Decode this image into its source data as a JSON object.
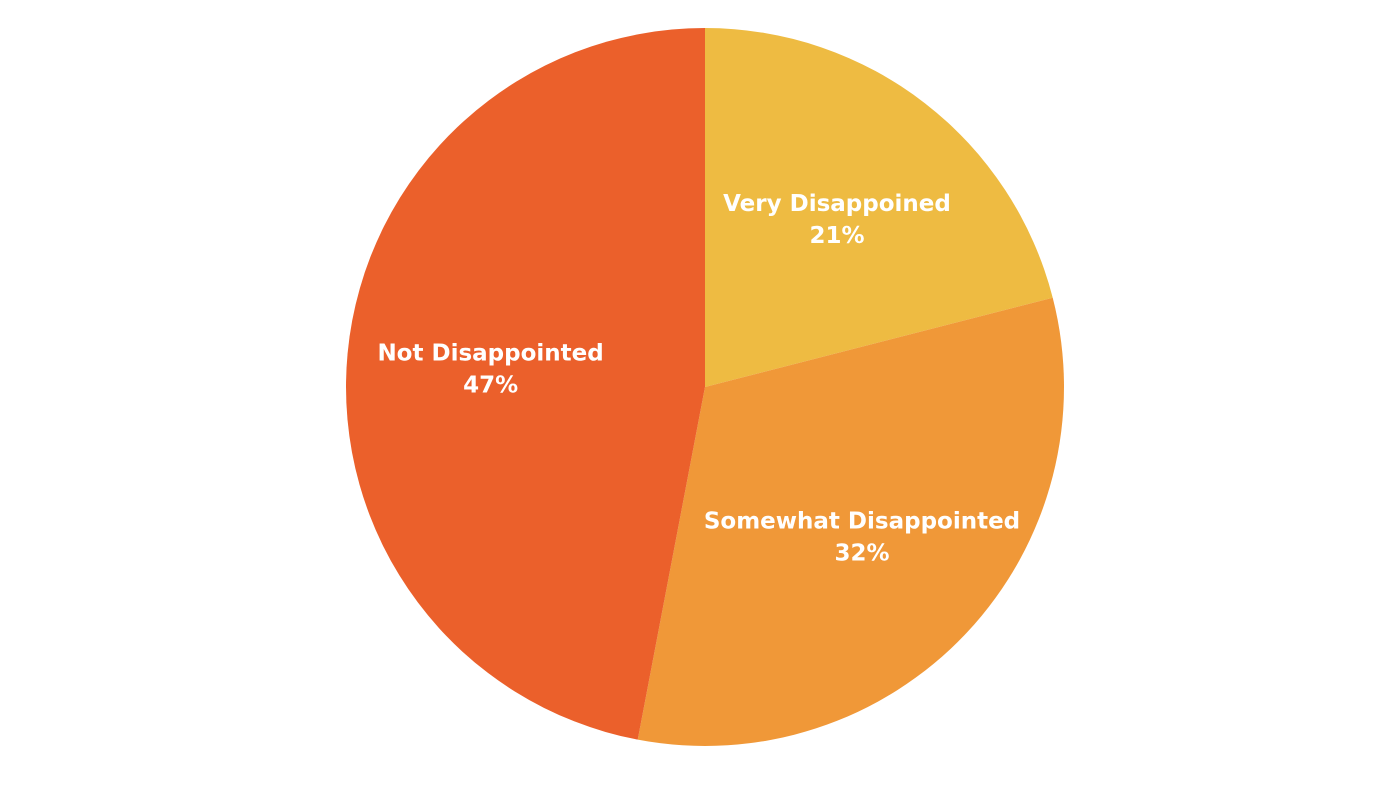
{
  "chart_data": {
    "type": "pie",
    "title": "",
    "slices": [
      {
        "label": "Very Disappoined",
        "value": 21,
        "display": "21%",
        "color": "#EEBB42"
      },
      {
        "label": "Somewhat Disappointed",
        "value": 32,
        "display": "32%",
        "color": "#F09838"
      },
      {
        "label": "Not Disappointed",
        "value": 47,
        "display": "47%",
        "color": "#EB602B"
      }
    ],
    "start_angle": "12 o'clock",
    "direction": "clockwise",
    "legend": "none",
    "label_color": "#FFFFFF"
  }
}
